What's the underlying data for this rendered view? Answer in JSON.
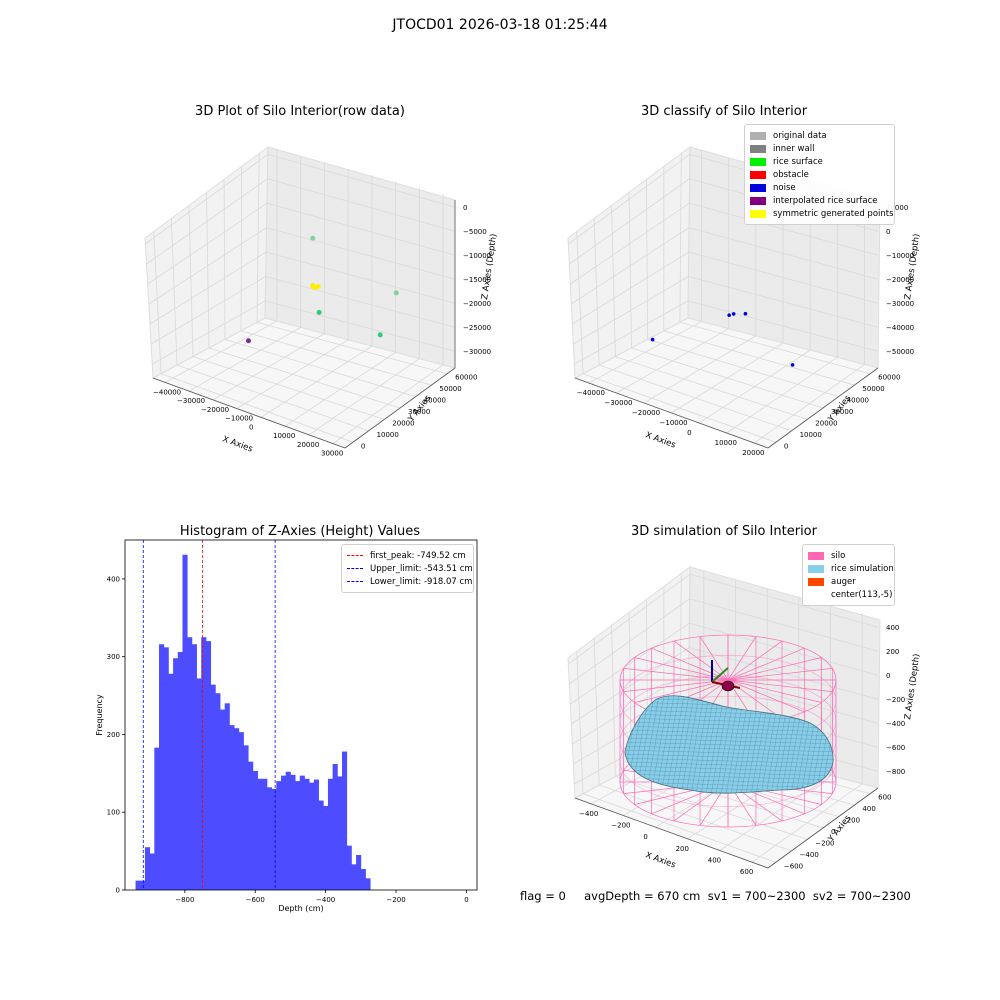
{
  "figure": {
    "suptitle": "JTOCD01 2026-03-18 01:25:44",
    "status_text": "flag = 0     avgDepth = 670 cm  sv1 = 700~2300  sv2 = 700~2300"
  },
  "chart_data": [
    {
      "type": "scatter",
      "title": "3D Plot of Silo Interior(row data)",
      "xlabel": "X Axies",
      "ylabel": "Y Axies",
      "zlabel": "Z Axies (Depth)",
      "x_ticks": [
        "−40000",
        "−30000",
        "−20000",
        "−10000",
        "0",
        "10000",
        "20000",
        "30000"
      ],
      "y_ticks": [
        "0",
        "10000",
        "20000",
        "30000",
        "40000",
        "50000",
        "60000"
      ],
      "z_ticks": [
        "0",
        "−5000",
        "−10000",
        "−15000",
        "−20000",
        "−25000",
        "−30000"
      ],
      "xlim": [
        -45000,
        32000
      ],
      "ylim": [
        0,
        65000
      ],
      "zlim": [
        -32000,
        0
      ],
      "points": [
        {
          "x": -10000,
          "y": 42000,
          "z": -16000,
          "color": "#ffee00"
        },
        {
          "x": -9500,
          "y": 42500,
          "z": -16400,
          "color": "#ffee00"
        },
        {
          "x": -8500,
          "y": 43000,
          "z": -16100,
          "color": "#ffee00"
        },
        {
          "x": -12000,
          "y": 45000,
          "z": -8000,
          "color": "#7fd3a0"
        },
        {
          "x": 18000,
          "y": 50000,
          "z": -14000,
          "color": "#7fd3a0"
        },
        {
          "x": -6000,
          "y": 40000,
          "z": -20000,
          "color": "#2ecc71"
        },
        {
          "x": 15000,
          "y": 45000,
          "z": -21500,
          "color": "#2ecc71"
        },
        {
          "x": -15000,
          "y": 12000,
          "z": -22000,
          "color": "#7a2b8f"
        }
      ],
      "grid": true
    },
    {
      "type": "scatter",
      "title": "3D classify of Silo Interior",
      "xlabel": "X Axies",
      "ylabel": "Y Axies",
      "zlabel": "Z Axies (Depth)",
      "x_ticks": [
        "−40000",
        "−30000",
        "−20000",
        "−10000",
        "0",
        "10000",
        "20000"
      ],
      "y_ticks": [
        "0",
        "10000",
        "20000",
        "30000",
        "40000",
        "50000",
        "60000"
      ],
      "z_ticks": [
        "10000",
        "0",
        "−10000",
        "−20000",
        "−30000",
        "−40000",
        "−50000"
      ],
      "legend": [
        {
          "label": "original data",
          "color": "#b0b0b0"
        },
        {
          "label": "inner wall",
          "color": "#808080"
        },
        {
          "label": "rice surface",
          "color": "#00ee00"
        },
        {
          "label": "obstacle",
          "color": "#ff0000"
        },
        {
          "label": "noise",
          "color": "#0000dd"
        },
        {
          "label": "interpolated rice surface",
          "color": "#800080"
        },
        {
          "label": "symmetric generated points",
          "color": "#ffff00"
        }
      ],
      "legend_position": "upper right",
      "points": [
        {
          "x": -8000,
          "y": 30000,
          "z": -25000,
          "color": "#0000dd"
        },
        {
          "x": -7000,
          "y": 31000,
          "z": -24500,
          "color": "#0000dd"
        },
        {
          "x": -4000,
          "y": 33000,
          "z": -24000,
          "color": "#0000dd"
        },
        {
          "x": 15000,
          "y": 30000,
          "z": -35000,
          "color": "#0000dd"
        },
        {
          "x": -20000,
          "y": 5000,
          "z": -30000,
          "color": "#0000dd"
        }
      ],
      "grid": true
    },
    {
      "type": "bar",
      "title": "Histogram of Z-Axies (Height) Values",
      "xlabel": "Depth (cm)",
      "ylabel": "Frequency",
      "xlim": [
        -970,
        30
      ],
      "ylim": [
        0,
        450
      ],
      "x_ticks": [
        -800,
        -600,
        -400,
        -200,
        0
      ],
      "x_tick_labels": [
        "−800",
        "−600",
        "−400",
        "−200",
        "0"
      ],
      "y_ticks": [
        0,
        100,
        200,
        300,
        400
      ],
      "bin_start": -940,
      "bin_width": 13.33,
      "values": [
        12,
        12,
        55,
        47,
        183,
        316,
        312,
        278,
        298,
        306,
        431,
        325,
        316,
        272,
        325,
        320,
        264,
        253,
        232,
        240,
        212,
        208,
        203,
        186,
        165,
        153,
        143,
        143,
        132,
        130,
        140,
        147,
        152,
        148,
        140,
        147,
        143,
        138,
        142,
        115,
        108,
        143,
        162,
        146,
        178,
        57,
        33,
        45,
        27,
        15
      ],
      "bar_color": "#4d4dff",
      "vlines": [
        {
          "x": -749.52,
          "color": "#ff0000",
          "label": "first_peak: -749.52 cm"
        },
        {
          "x": -543.51,
          "color": "#0000ff",
          "label": "Upper_limit: -543.51 cm"
        },
        {
          "x": -918.07,
          "color": "#0000ff",
          "label": "Lower_limit: -918.07 cm"
        }
      ],
      "legend_position": "upper right"
    },
    {
      "type": "surface",
      "title": "3D simulation of Silo Interior",
      "xlabel": "X Axies",
      "ylabel": "Y Axies",
      "zlabel": "Z Axies (Depth)",
      "x_ticks": [
        "−400",
        "−200",
        "0",
        "200",
        "400",
        "600"
      ],
      "y_ticks": [
        "−600",
        "−400",
        "−200",
        "0",
        "200",
        "400",
        "600"
      ],
      "z_ticks": [
        "400",
        "200",
        "0",
        "−200",
        "−400",
        "−600",
        "−800"
      ],
      "legend": [
        {
          "label": "silo",
          "color": "#ff69b4"
        },
        {
          "label": "rice simulation",
          "color": "#87ceeb"
        },
        {
          "label": "auger",
          "color": "#ff4500"
        },
        {
          "label": "center(113,-5)",
          "color": "#ffffff"
        }
      ],
      "legend_position": "upper right",
      "grid": true
    }
  ]
}
